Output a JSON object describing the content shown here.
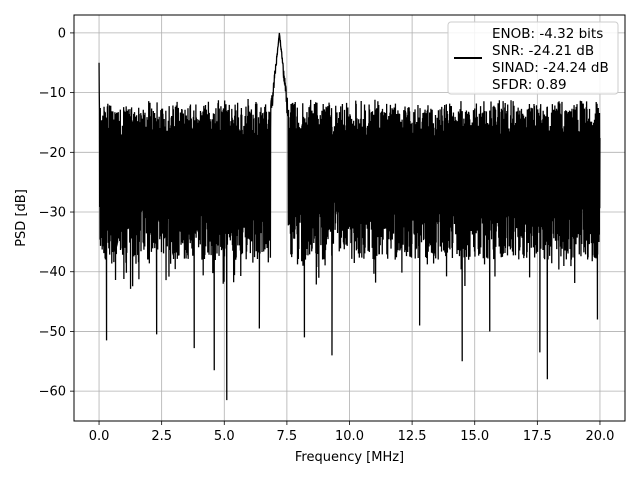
{
  "chart_data": {
    "type": "line",
    "title": "",
    "xlabel": "Frequency [MHz]",
    "ylabel": "PSD [dB]",
    "xlim": [
      -1,
      21
    ],
    "ylim": [
      -65,
      3
    ],
    "grid": true,
    "x_ticks": [
      0,
      2.5,
      5,
      7.5,
      10,
      12.5,
      15,
      17.5,
      20
    ],
    "x_tick_labels": [
      "0.0",
      "2.5",
      "5.0",
      "7.5",
      "10.0",
      "12.5",
      "15.0",
      "17.5",
      "20.0"
    ],
    "y_ticks": [
      0,
      -10,
      -20,
      -30,
      -40,
      -50,
      -60
    ],
    "y_tick_labels": [
      "0",
      "−10",
      "−20",
      "−30",
      "−40",
      "−50",
      "−60"
    ],
    "series": [
      {
        "color": "#000000",
        "x_range": [
          0,
          20
        ],
        "approx_upper_envelope_db": -12,
        "approx_lower_envelope_db": -38,
        "peaks": [
          {
            "x": 0.0,
            "y": -5.0
          },
          {
            "x": 7.2,
            "y": 0.0
          }
        ],
        "notable_dips": [
          {
            "x": 0.3,
            "y": -51.5
          },
          {
            "x": 2.3,
            "y": -50.5
          },
          {
            "x": 3.8,
            "y": -52.8
          },
          {
            "x": 4.6,
            "y": -56.5
          },
          {
            "x": 5.1,
            "y": -61.5
          },
          {
            "x": 6.4,
            "y": -49.5
          },
          {
            "x": 8.2,
            "y": -51.0
          },
          {
            "x": 9.3,
            "y": -54.0
          },
          {
            "x": 12.8,
            "y": -49.0
          },
          {
            "x": 14.5,
            "y": -55.0
          },
          {
            "x": 15.6,
            "y": -50.0
          },
          {
            "x": 17.6,
            "y": -53.5
          },
          {
            "x": 17.9,
            "y": -58.0
          },
          {
            "x": 19.9,
            "y": -48.0
          }
        ]
      }
    ],
    "legend": {
      "placement": "top-right",
      "entries": [
        "ENOB: -4.32 bits",
        "SNR: -24.21 dB",
        "SINAD: -24.24 dB",
        "SFDR: 0.89"
      ]
    }
  }
}
